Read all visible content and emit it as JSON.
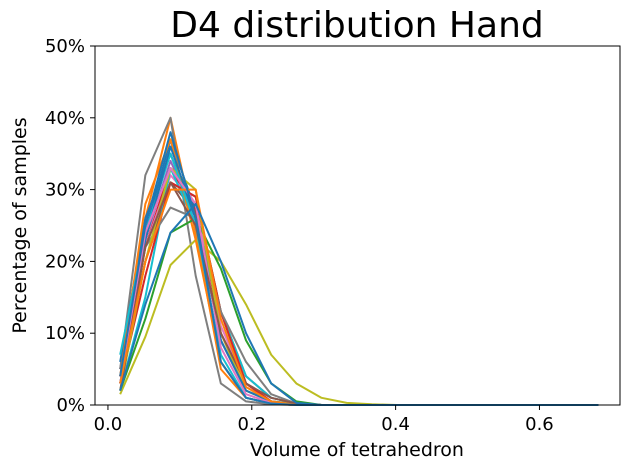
{
  "chart_data": {
    "type": "line",
    "title": "D4 distribution Hand",
    "xlabel": "Volume of tetrahedron",
    "ylabel": "Percentage of samples",
    "xlim": [
      -0.018,
      0.712
    ],
    "ylim": [
      0,
      50
    ],
    "x_ticks": [
      0.0,
      0.2,
      0.4,
      0.6
    ],
    "x_tick_labels": [
      "0.0",
      "0.2",
      "0.4",
      "0.6"
    ],
    "y_ticks": [
      0,
      10,
      20,
      30,
      40,
      50
    ],
    "y_tick_labels": [
      "0%",
      "10%",
      "20%",
      "30%",
      "40%",
      "50%"
    ],
    "grid": false,
    "legend": "none",
    "x": [
      0.017,
      0.052,
      0.087,
      0.122,
      0.157,
      0.192,
      0.227,
      0.262,
      0.297,
      0.332,
      0.367,
      0.402,
      0.437,
      0.472,
      0.507,
      0.542,
      0.577,
      0.612,
      0.647,
      0.682
    ],
    "series": [
      {
        "color": "#1f77b4",
        "values": [
          5,
          24,
          37,
          27,
          9,
          2,
          0.5,
          0.1,
          0,
          0,
          0,
          0,
          0,
          0,
          0,
          0,
          0,
          0,
          0,
          0
        ]
      },
      {
        "color": "#ff7f0e",
        "values": [
          4,
          26,
          40,
          24,
          5,
          1,
          0.2,
          0,
          0,
          0,
          0,
          0,
          0,
          0,
          0,
          0,
          0,
          0,
          0,
          0
        ]
      },
      {
        "color": "#2ca02c",
        "values": [
          3,
          20,
          31,
          29,
          13,
          3,
          0.5,
          0.1,
          0,
          0,
          0,
          0,
          0,
          0,
          0,
          0,
          0,
          0,
          0,
          0
        ]
      },
      {
        "color": "#d62728",
        "values": [
          4,
          22,
          33,
          27,
          10,
          3,
          0.5,
          0.1,
          0,
          0,
          0,
          0,
          0,
          0,
          0,
          0,
          0,
          0,
          0,
          0
        ]
      },
      {
        "color": "#9467bd",
        "values": [
          5,
          23,
          34,
          26,
          9,
          2,
          0.5,
          0,
          0,
          0,
          0,
          0,
          0,
          0,
          0,
          0,
          0,
          0,
          0,
          0
        ]
      },
      {
        "color": "#8c564b",
        "values": [
          3,
          20,
          31,
          27,
          13,
          4,
          1,
          0.2,
          0,
          0,
          0,
          0,
          0,
          0,
          0,
          0,
          0,
          0,
          0,
          0
        ]
      },
      {
        "color": "#e377c2",
        "values": [
          4,
          22,
          32,
          28,
          11,
          3,
          0.5,
          0.1,
          0,
          0,
          0,
          0,
          0,
          0,
          0,
          0,
          0,
          0,
          0,
          0
        ]
      },
      {
        "color": "#7f7f7f",
        "values": [
          5,
          32,
          40,
          18,
          3,
          0.5,
          0.1,
          0,
          0,
          0,
          0,
          0,
          0,
          0,
          0,
          0,
          0,
          0,
          0,
          0
        ]
      },
      {
        "color": "#bcbd22",
        "values": [
          1.5,
          9.5,
          19.5,
          23,
          20,
          14,
          7,
          3,
          1,
          0.3,
          0.1,
          0,
          0,
          0,
          0,
          0,
          0,
          0,
          0,
          0
        ]
      },
      {
        "color": "#17becf",
        "values": [
          2,
          15,
          33,
          25,
          13,
          4,
          1,
          0.2,
          0,
          0,
          0,
          0,
          0,
          0,
          0,
          0,
          0,
          0,
          0,
          0
        ]
      },
      {
        "color": "#1f77b4",
        "values": [
          6,
          26,
          35,
          26,
          6,
          1,
          0.2,
          0,
          0,
          0,
          0,
          0,
          0,
          0,
          0,
          0,
          0,
          0,
          0,
          0
        ]
      },
      {
        "color": "#ff7f0e",
        "values": [
          4,
          28,
          37,
          23,
          6,
          1,
          0.2,
          0,
          0,
          0,
          0,
          0,
          0,
          0,
          0,
          0,
          0,
          0,
          0,
          0
        ]
      },
      {
        "color": "#2ca02c",
        "values": [
          2,
          12,
          24,
          26,
          19,
          9,
          3,
          0.5,
          0,
          0,
          0,
          0,
          0,
          0,
          0,
          0,
          0,
          0,
          0,
          0
        ]
      },
      {
        "color": "#d62728",
        "values": [
          3,
          18,
          31,
          29,
          13,
          3,
          0.5,
          0,
          0,
          0,
          0,
          0,
          0,
          0,
          0,
          0,
          0,
          0,
          0,
          0
        ]
      },
      {
        "color": "#7f7f7f",
        "values": [
          3,
          22,
          27.5,
          26,
          13,
          6,
          1.5,
          0.2,
          0,
          0,
          0,
          0,
          0,
          0,
          0,
          0,
          0,
          0,
          0,
          0
        ]
      },
      {
        "color": "#bcbd22",
        "values": [
          2,
          20,
          33,
          30,
          10,
          2,
          0.5,
          0.1,
          0,
          0,
          0,
          0,
          0,
          0,
          0,
          0,
          0,
          0,
          0,
          0
        ]
      },
      {
        "color": "#17becf",
        "values": [
          7,
          24,
          35,
          25,
          7,
          1,
          0.2,
          0,
          0,
          0,
          0,
          0,
          0,
          0,
          0,
          0,
          0,
          0,
          0,
          0
        ]
      },
      {
        "color": "#1f77b4",
        "values": [
          3,
          23,
          36,
          26,
          9,
          2,
          0.5,
          0,
          0,
          0,
          0,
          0,
          0,
          0,
          0,
          0,
          0,
          0,
          0,
          0
        ]
      },
      {
        "color": "#e377c2",
        "values": [
          3,
          24,
          33,
          28,
          8,
          1.5,
          0.3,
          0,
          0,
          0,
          0,
          0,
          0,
          0,
          0,
          0,
          0,
          0,
          0,
          0
        ]
      },
      {
        "color": "#8c564b",
        "values": [
          2,
          22,
          31,
          25,
          10,
          3,
          1,
          0.2,
          0,
          0,
          0,
          0,
          0,
          0,
          0,
          0,
          0,
          0,
          0,
          0
        ]
      },
      {
        "color": "#ff7f0e",
        "values": [
          3,
          20,
          30,
          30,
          12,
          2.5,
          0.5,
          0,
          0,
          0,
          0,
          0,
          0,
          0,
          0,
          0,
          0,
          0,
          0,
          0
        ]
      },
      {
        "color": "#1f77b4",
        "values": [
          4,
          25,
          38,
          26,
          6,
          1,
          0.2,
          0,
          0,
          0,
          0,
          0,
          0,
          0,
          0,
          0,
          0,
          0,
          0,
          0
        ]
      },
      {
        "color": "#1f77b4",
        "values": [
          2,
          14,
          24,
          28,
          20,
          10,
          3,
          0.3,
          0,
          0,
          0,
          0,
          0,
          0,
          0,
          0,
          0,
          0,
          0,
          0
        ]
      }
    ]
  }
}
